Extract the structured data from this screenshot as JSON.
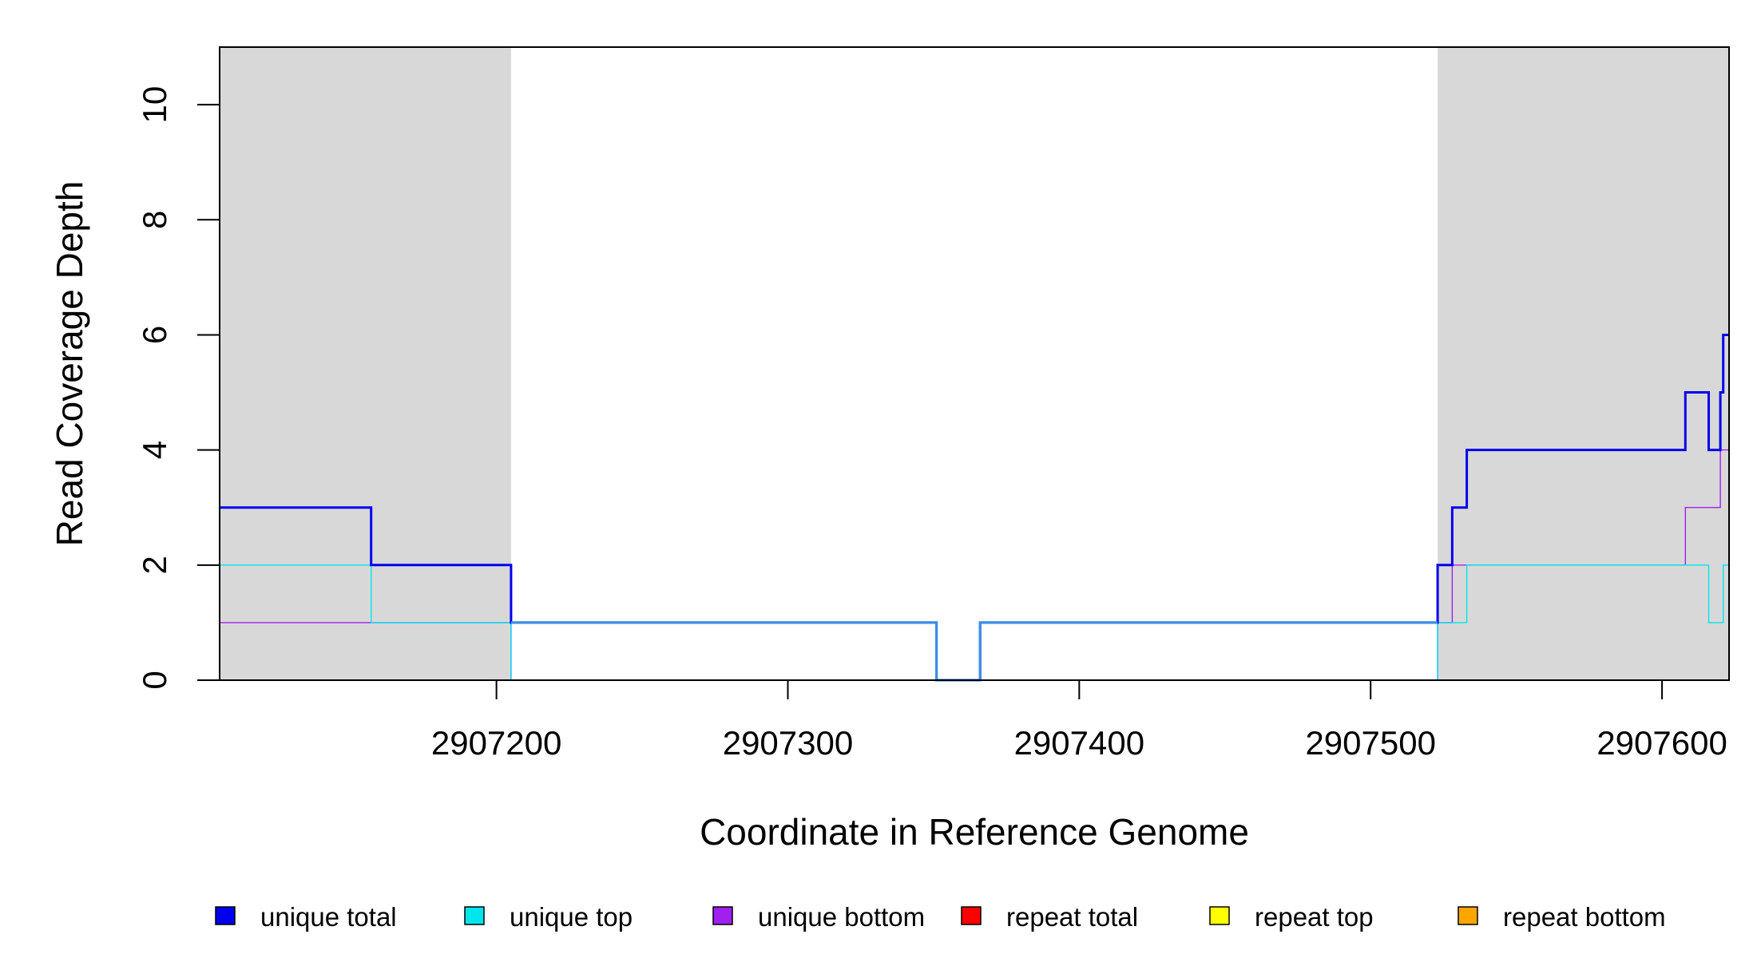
{
  "chart_data": {
    "type": "line",
    "step": true,
    "xlabel": "Coordinate in Reference Genome",
    "ylabel": "Read Coverage Depth",
    "xlim": [
      2907105,
      2907623
    ],
    "ylim": [
      0,
      11
    ],
    "x_ticks": [
      2907200,
      2907300,
      2907400,
      2907500,
      2907600
    ],
    "x_tick_labels": [
      "2907200",
      "2907300",
      "2907400",
      "2907500",
      "2907600"
    ],
    "y_ticks": [
      0,
      2,
      4,
      6,
      8,
      10
    ],
    "y_tick_labels": [
      "0",
      "2",
      "4",
      "6",
      "8",
      "10"
    ],
    "grid": false,
    "legend_position": "bottom",
    "shaded_regions": [
      {
        "x_start": 2907105,
        "x_end": 2907205,
        "color": "#d8d8d8"
      },
      {
        "x_start": 2907523,
        "x_end": 2907623,
        "color": "#d8d8d8"
      }
    ],
    "series": [
      {
        "name": "unique total",
        "color": "#0000ee",
        "width": 3,
        "points": [
          [
            2907105,
            3
          ],
          [
            2907157,
            3
          ],
          [
            2907157,
            2
          ],
          [
            2907205,
            2
          ],
          [
            2907205,
            1
          ],
          [
            2907351,
            1
          ],
          [
            2907351,
            0
          ],
          [
            2907366,
            0
          ],
          [
            2907366,
            1
          ],
          [
            2907523,
            1
          ],
          [
            2907523,
            2
          ],
          [
            2907528,
            2
          ],
          [
            2907528,
            3
          ],
          [
            2907533,
            3
          ],
          [
            2907533,
            4
          ],
          [
            2907608,
            4
          ],
          [
            2907608,
            5
          ],
          [
            2907616,
            5
          ],
          [
            2907616,
            4
          ],
          [
            2907620,
            4
          ],
          [
            2907620,
            5
          ],
          [
            2907621,
            5
          ],
          [
            2907621,
            6
          ],
          [
            2907623,
            6
          ]
        ]
      },
      {
        "name": "unique top",
        "color": "#00e5ee",
        "width": 1.4,
        "points": [
          [
            2907105,
            2
          ],
          [
            2907157,
            2
          ],
          [
            2907157,
            1
          ],
          [
            2907205,
            1
          ],
          [
            2907205,
            0
          ],
          [
            2907523,
            0
          ],
          [
            2907523,
            1
          ],
          [
            2907533,
            1
          ],
          [
            2907533,
            2
          ],
          [
            2907616,
            2
          ],
          [
            2907616,
            1
          ],
          [
            2907621,
            1
          ],
          [
            2907621,
            2
          ],
          [
            2907623,
            2
          ]
        ]
      },
      {
        "name": "unique bottom",
        "color": "#a020f0",
        "width": 1.4,
        "points": [
          [
            2907105,
            1
          ],
          [
            2907205,
            1
          ],
          [
            2907205,
            0
          ],
          [
            2907523,
            0
          ],
          [
            2907523,
            1
          ],
          [
            2907528,
            1
          ],
          [
            2907528,
            2
          ],
          [
            2907608,
            2
          ],
          [
            2907608,
            3
          ],
          [
            2907620,
            3
          ],
          [
            2907620,
            4
          ],
          [
            2907623,
            4
          ]
        ]
      },
      {
        "name": "repeat total",
        "color": "#ff0000",
        "width": 1.4,
        "points": [
          [
            2907105,
            0
          ],
          [
            2907623,
            0
          ]
        ]
      },
      {
        "name": "repeat top",
        "color": "#ffff00",
        "width": 1.4,
        "points": [
          [
            2907105,
            0
          ],
          [
            2907623,
            0
          ]
        ]
      },
      {
        "name": "repeat bottom",
        "color": "#ffa500",
        "width": 1.4,
        "points": [
          [
            2907105,
            0
          ],
          [
            2907623,
            0
          ]
        ]
      }
    ],
    "overlay_segments": [
      {
        "color": "#3d8fe6",
        "width": 3.2,
        "points": [
          [
            2907205,
            1
          ],
          [
            2907351,
            1
          ],
          [
            2907351,
            0
          ],
          [
            2907366,
            0
          ],
          [
            2907366,
            1
          ],
          [
            2907523,
            1
          ]
        ]
      }
    ],
    "legend": [
      {
        "label": "unique total",
        "color": "#0000ee"
      },
      {
        "label": "unique top",
        "color": "#00e5ee"
      },
      {
        "label": "unique bottom",
        "color": "#a020f0"
      },
      {
        "label": "repeat total",
        "color": "#ff0000"
      },
      {
        "label": "repeat top",
        "color": "#ffff00"
      },
      {
        "label": "repeat bottom",
        "color": "#ffa500"
      }
    ]
  }
}
